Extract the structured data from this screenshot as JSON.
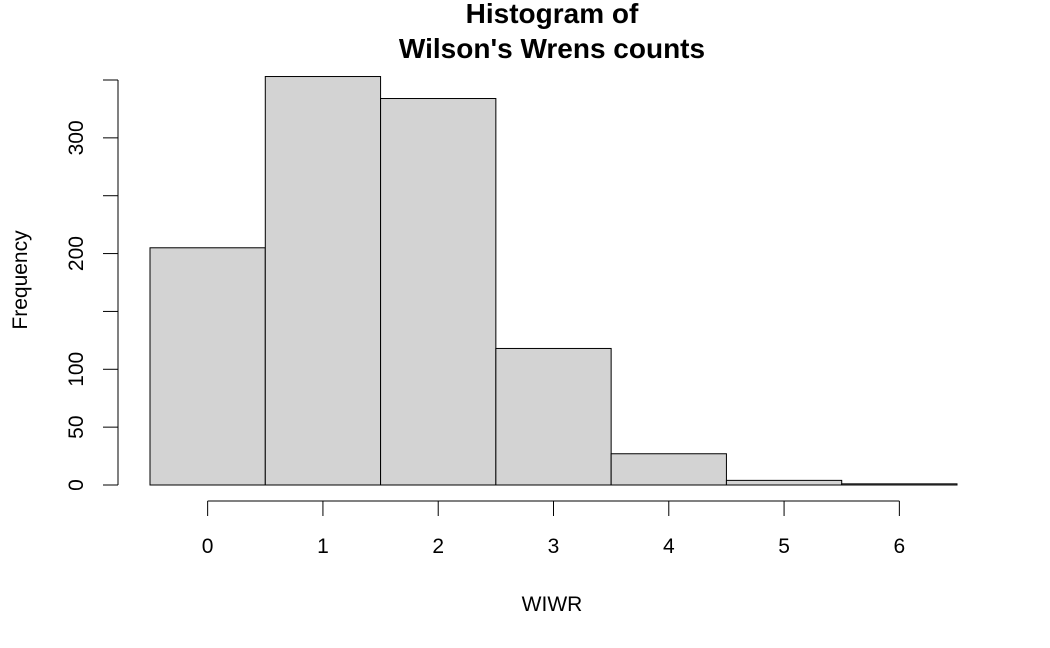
{
  "chart_data": {
    "type": "bar",
    "title": [
      "Histogram of",
      "Wilson's Wrens counts"
    ],
    "xlabel": "WIWR",
    "ylabel": "Frequency",
    "categories": [
      "0",
      "1",
      "2",
      "3",
      "4",
      "5",
      "6"
    ],
    "bin_edges": [
      -0.5,
      0.5,
      1.5,
      2.5,
      3.5,
      4.5,
      5.5,
      6.5
    ],
    "values": [
      205,
      353,
      334,
      118,
      27,
      4,
      1
    ],
    "x_ticks": [
      0,
      1,
      2,
      3,
      4,
      5,
      6
    ],
    "y_ticks": [
      0,
      50,
      100,
      200,
      300
    ],
    "y_minor_ticks": [
      150,
      250,
      350
    ],
    "xlim": [
      -0.5,
      6.5
    ],
    "ylim": [
      0,
      350
    ],
    "bar_color": "#d3d3d3",
    "grid": false,
    "legend": "none"
  }
}
